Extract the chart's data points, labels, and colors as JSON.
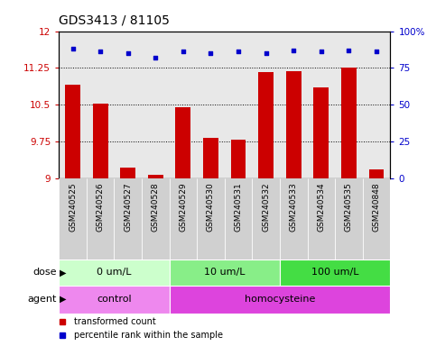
{
  "title": "GDS3413 / 81105",
  "samples": [
    "GSM240525",
    "GSM240526",
    "GSM240527",
    "GSM240528",
    "GSM240529",
    "GSM240530",
    "GSM240531",
    "GSM240532",
    "GSM240533",
    "GSM240534",
    "GSM240535",
    "GSM240848"
  ],
  "bar_values": [
    10.9,
    10.52,
    9.22,
    9.07,
    10.45,
    9.82,
    9.79,
    11.17,
    11.18,
    10.85,
    11.25,
    9.18
  ],
  "dot_values": [
    88,
    86,
    85,
    82,
    86,
    85,
    86,
    85,
    87,
    86,
    87,
    86
  ],
  "bar_color": "#cc0000",
  "dot_color": "#0000cc",
  "ylim_left": [
    9,
    12
  ],
  "ylim_right": [
    0,
    100
  ],
  "yticks_left": [
    9,
    9.75,
    10.5,
    11.25,
    12
  ],
  "ytick_labels_left": [
    "9",
    "9.75",
    "10.5",
    "11.25",
    "12"
  ],
  "yticks_right": [
    0,
    25,
    50,
    75,
    100
  ],
  "ytick_labels_right": [
    "0",
    "25",
    "50",
    "75",
    "100%"
  ],
  "grid_lines": [
    9.75,
    10.5,
    11.25
  ],
  "dose_groups": [
    {
      "label": "0 um/L",
      "start": 0,
      "end": 4,
      "color": "#ccffcc"
    },
    {
      "label": "10 um/L",
      "start": 4,
      "end": 8,
      "color": "#88ee88"
    },
    {
      "label": "100 um/L",
      "start": 8,
      "end": 12,
      "color": "#44dd44"
    }
  ],
  "agent_groups": [
    {
      "label": "control",
      "start": 0,
      "end": 4,
      "color": "#ee88ee"
    },
    {
      "label": "homocysteine",
      "start": 4,
      "end": 12,
      "color": "#dd44dd"
    }
  ],
  "dose_label": "dose",
  "agent_label": "agent",
  "legend_bar_label": "transformed count",
  "legend_dot_label": "percentile rank within the sample",
  "background_color": "#ffffff",
  "plot_bg_color": "#e8e8e8",
  "title_fontsize": 10,
  "tick_fontsize": 7.5,
  "sample_fontsize": 6.5,
  "row_fontsize": 8,
  "legend_fontsize": 7
}
